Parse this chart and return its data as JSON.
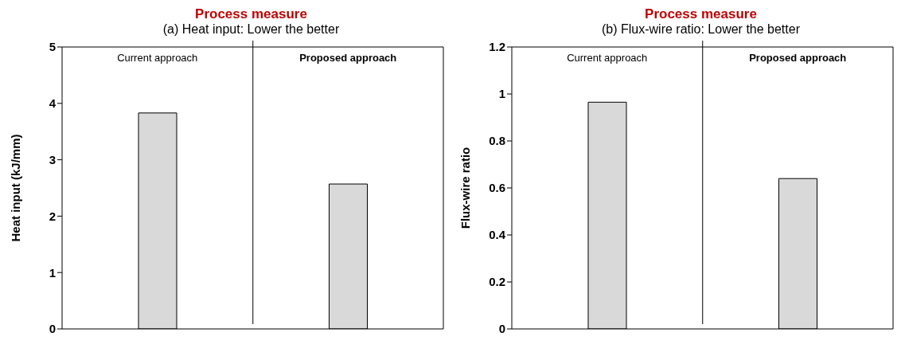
{
  "chart_data": [
    {
      "type": "bar",
      "title": "Process measure",
      "subtitle": "(a) Heat input: Lower the better",
      "ylabel": "Heat input (kJ/mm)",
      "categories": [
        "Current approach",
        "Proposed approach"
      ],
      "values": [
        3.83,
        2.57
      ],
      "color": "#d9d9d9",
      "ylim": [
        0,
        5
      ],
      "yticks": [
        0,
        1,
        2,
        3,
        4,
        5
      ],
      "grid": false
    },
    {
      "type": "bar",
      "title": "Process measure",
      "subtitle": "(b) Flux-wire ratio: Lower the better",
      "ylabel": "Flux-wire ratio",
      "categories": [
        "Current approach",
        "Proposed approach"
      ],
      "values": [
        0.965,
        0.64
      ],
      "color": "#d9d9d9",
      "ylim": [
        0,
        1.2
      ],
      "yticks": [
        0,
        0.2,
        0.4,
        0.6,
        0.8,
        1,
        1.2
      ],
      "grid": false
    }
  ]
}
